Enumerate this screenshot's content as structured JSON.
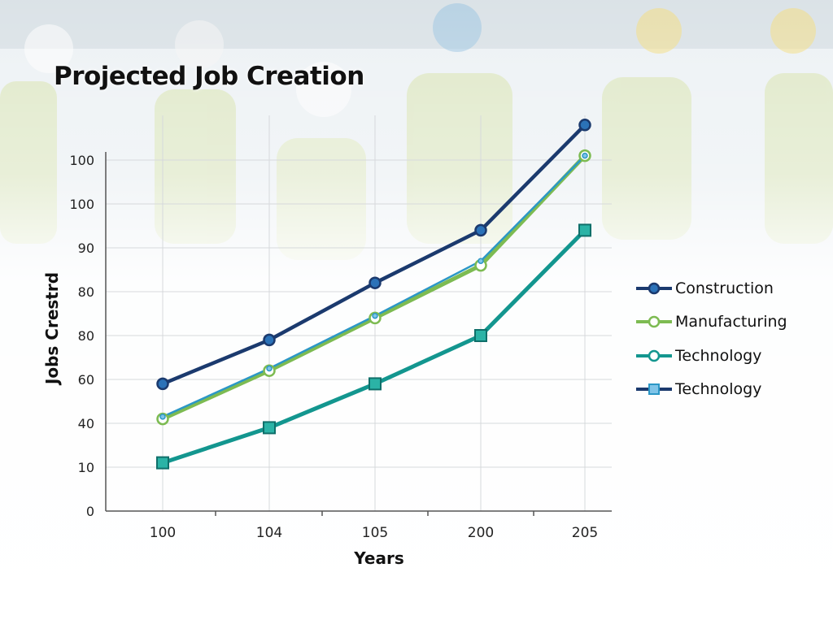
{
  "colors": {
    "construction": "#1b3a6e",
    "manufacturing": "#7dbb52",
    "technology_teal": "#13968f",
    "technology_blue": "#2b97c6",
    "grid": "#d6d9dc",
    "axis": "#555555"
  },
  "chart_data": {
    "type": "line",
    "title": "Projected Job Creation",
    "xlabel": "Years",
    "ylabel": "Jobs Crestrd",
    "x_tick_labels": [
      "100",
      "104",
      "105",
      "200",
      "205"
    ],
    "y_tick_labels": [
      "0",
      "10",
      "40",
      "60",
      "80",
      "80",
      "90",
      "100",
      "100"
    ],
    "ylim_tick_index": [
      0,
      8
    ],
    "grid": true,
    "legend_position": "right",
    "series": [
      {
        "name": "Construction",
        "marker": "circle",
        "color": "#1b3a6e",
        "values_tick_index": [
          2.9,
          3.9,
          5.2,
          6.4,
          8.8
        ]
      },
      {
        "name": "Manufacturing",
        "marker": "open-circle",
        "color": "#7dbb52",
        "values_tick_index": [
          2.1,
          3.2,
          4.4,
          5.6,
          8.1
        ]
      },
      {
        "name": "Technology",
        "marker": "circle",
        "color": "#13968f",
        "values_tick_index": [
          1.1,
          1.9,
          2.9,
          4.0,
          6.4
        ]
      },
      {
        "name": "Technology",
        "marker": "square",
        "color": "#2b97c6",
        "values_tick_index": [
          2.15,
          3.25,
          4.45,
          5.7,
          8.1
        ]
      }
    ]
  }
}
